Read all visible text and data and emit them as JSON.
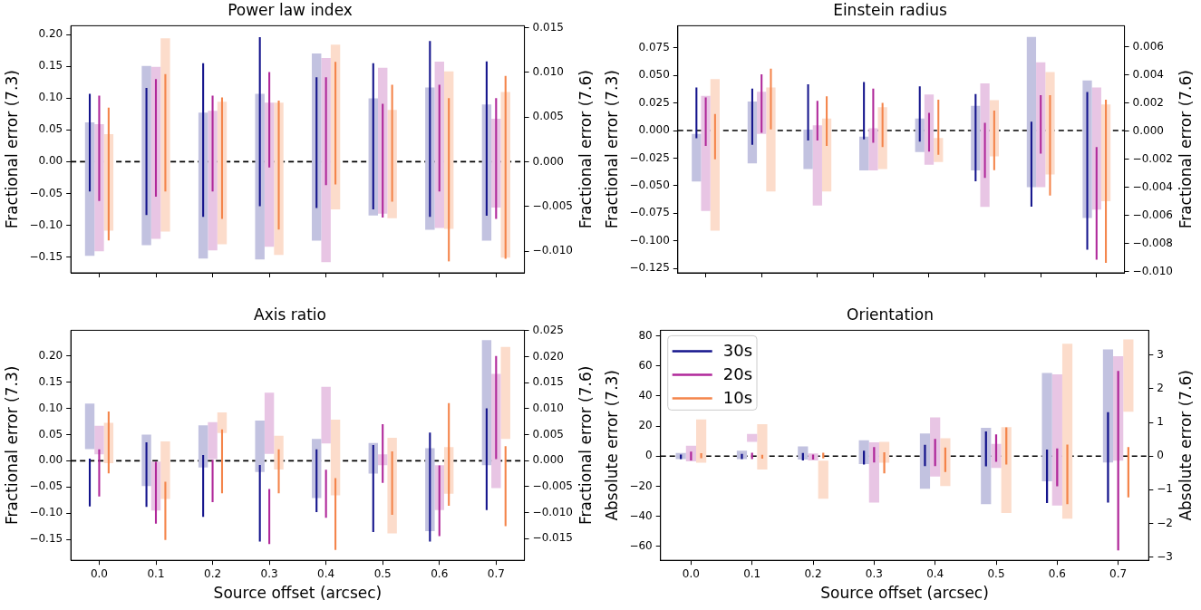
{
  "chart_data": [
    {
      "type": "bar",
      "title": "Power law index",
      "ylabel": "Fractional error (7.3)",
      "y2label": "Fractional error (7.6)",
      "categories": [
        "0.0",
        "0.1",
        "0.2",
        "0.3",
        "0.4",
        "0.5",
        "0.6",
        "0.7"
      ],
      "tick_labels": "y",
      "ylim": [
        -0.175,
        0.214
      ],
      "yticks": [
        {
          "value": -0.15,
          "label": "−0.15"
        },
        {
          "value": -0.1,
          "label": "−0.10"
        },
        {
          "value": -0.05,
          "label": "−0.05"
        },
        {
          "value": 0,
          "label": "0.00"
        },
        {
          "value": 0.05,
          "label": "0.05"
        },
        {
          "value": 0.1,
          "label": "0.10"
        },
        {
          "value": 0.15,
          "label": "0.15"
        },
        {
          "value": 0.2,
          "label": "0.20"
        }
      ],
      "y2lim": [
        -0.0124,
        0.0152
      ],
      "y2ticks": [
        {
          "value": -0.01,
          "label": "−0.010"
        },
        {
          "value": -0.005,
          "label": "−0.005"
        },
        {
          "value": 0,
          "label": "0.000"
        },
        {
          "value": 0.005,
          "label": "0.005"
        },
        {
          "value": 0.01,
          "label": "0.010"
        },
        {
          "value": 0.015,
          "label": "0.015"
        }
      ],
      "ref_lines": [
        {
          "axis": "y",
          "value": 0,
          "color": "#000000",
          "line_style": "dashed"
        }
      ],
      "series": [
        {
          "axis": "y2",
          "color": "#c2c2e0",
          "base": [
            -0.0105,
            -0.0093,
            -0.0108,
            -0.0109,
            -0.0088,
            -0.006,
            -0.0076,
            -0.0088
          ],
          "values": [
            0.0149,
            0.02,
            0.0163,
            0.0185,
            0.0209,
            0.0131,
            0.0159,
            0.0152
          ]
        },
        {
          "axis": "y2",
          "color": "#e8c5e4",
          "base": [
            -0.01,
            -0.0086,
            -0.0099,
            -0.0095,
            -0.0112,
            -0.0058,
            -0.0074,
            -0.0051
          ],
          "values": [
            0.0142,
            0.0192,
            0.0156,
            0.0161,
            0.0228,
            0.0163,
            0.0186,
            0.0099
          ]
        },
        {
          "axis": "y2",
          "color": "#fcdccb",
          "base": [
            -0.0077,
            -0.0078,
            -0.0092,
            -0.0104,
            -0.0053,
            -0.0063,
            -0.0075,
            -0.0107
          ],
          "values": [
            0.0108,
            0.0216,
            0.0159,
            0.017,
            0.0184,
            0.0121,
            0.0176,
            0.0185
          ]
        },
        {
          "axis": "y",
          "color": "#14148c",
          "base": [
            -0.047,
            -0.084,
            -0.087,
            -0.07,
            -0.073,
            -0.075,
            -0.087,
            -0.085
          ],
          "values": [
            0.154,
            0.2,
            0.242,
            0.266,
            0.206,
            0.23,
            0.277,
            0.243
          ]
        },
        {
          "axis": "y",
          "color": "#b0289a",
          "base": [
            -0.062,
            -0.055,
            -0.047,
            -0.009,
            -0.037,
            -0.088,
            -0.047,
            -0.09
          ],
          "values": [
            0.166,
            0.185,
            0.151,
            0.15,
            0.17,
            0.179,
            0.168,
            0.19
          ]
        },
        {
          "axis": "y",
          "color": "#f4844a",
          "base": [
            -0.124,
            -0.047,
            -0.09,
            -0.107,
            -0.036,
            -0.063,
            -0.157,
            -0.153
          ],
          "values": [
            0.209,
            0.185,
            0.191,
            0.203,
            0.193,
            0.184,
            0.257,
            0.288
          ]
        }
      ]
    },
    {
      "type": "bar",
      "title": "Einstein radius",
      "ylabel": "Fractional error (7.3)",
      "y2label": "Fractional error (7.6)",
      "categories": [
        "0.0",
        "0.1",
        "0.2",
        "0.3",
        "0.4",
        "0.5",
        "0.6",
        "0.7"
      ],
      "tick_labels": "y",
      "ylim": [
        -0.129,
        0.095
      ],
      "yticks": [
        {
          "value": -0.125,
          "label": "−0.125"
        },
        {
          "value": -0.1,
          "label": "−0.100"
        },
        {
          "value": -0.075,
          "label": "−0.075"
        },
        {
          "value": -0.05,
          "label": "−0.050"
        },
        {
          "value": -0.025,
          "label": "−0.025"
        },
        {
          "value": 0,
          "label": "0.000"
        },
        {
          "value": 0.025,
          "label": "0.025"
        },
        {
          "value": 0.05,
          "label": "0.050"
        },
        {
          "value": 0.075,
          "label": "0.075"
        }
      ],
      "y2lim": [
        -0.0101,
        0.0075
      ],
      "y2ticks": [
        {
          "value": -0.01,
          "label": "−0.010"
        },
        {
          "value": -0.008,
          "label": "−0.008"
        },
        {
          "value": -0.006,
          "label": "−0.006"
        },
        {
          "value": -0.004,
          "label": "−0.004"
        },
        {
          "value": -0.002,
          "label": "−0.002"
        },
        {
          "value": 0,
          "label": "0.000"
        },
        {
          "value": 0.002,
          "label": "0.002"
        },
        {
          "value": 0.004,
          "label": "0.004"
        },
        {
          "value": 0.006,
          "label": "0.006"
        }
      ],
      "ref_lines": [
        {
          "axis": "y",
          "value": 0,
          "color": "#000000",
          "line_style": "dashed"
        }
      ],
      "series": [
        {
          "axis": "y2",
          "color": "#c2c2e0",
          "base": [
            -0.0036,
            -0.0023,
            -0.0027,
            -0.0028,
            -0.0015,
            -0.0028,
            -0.004,
            -0.0062
          ],
          "values": [
            0.0034,
            0.0044,
            0.0028,
            0.0024,
            0.0024,
            0.0046,
            0.0107,
            0.0098
          ]
        },
        {
          "axis": "y2",
          "color": "#e8c5e4",
          "base": [
            -0.0057,
            -0.0002,
            -0.0053,
            -0.0028,
            -0.0024,
            -0.0054,
            -0.004,
            -0.0056
          ],
          "values": [
            0.0082,
            0.003,
            0.0057,
            0.003,
            0.005,
            0.0088,
            0.0089,
            0.0087
          ]
        },
        {
          "axis": "y2",
          "color": "#fcdccb",
          "base": [
            -0.0071,
            -0.0043,
            -0.0043,
            -0.0027,
            -0.0022,
            -0.0018,
            -0.0031,
            -0.005
          ],
          "values": [
            0.0108,
            0.0074,
            0.0052,
            0.0044,
            0.0017,
            0.004,
            0.0073,
            0.0069
          ]
        },
        {
          "axis": "y",
          "color": "#14148c",
          "base": [
            -0.007,
            -0.013,
            -0.009,
            -0.008,
            -0.01,
            -0.046,
            -0.069,
            -0.108
          ],
          "values": [
            0.046,
            0.051,
            0.051,
            0.052,
            0.05,
            0.079,
            0.077,
            0.143
          ]
        },
        {
          "axis": "y",
          "color": "#b0289a",
          "base": [
            -0.014,
            -0.002,
            -0.009,
            -0.011,
            -0.019,
            -0.043,
            -0.021,
            -0.117
          ],
          "values": [
            0.044,
            0.053,
            0.036,
            0.049,
            0.035,
            0.05,
            0.053,
            0.102
          ]
        },
        {
          "axis": "y",
          "color": "#f4844a",
          "base": [
            -0.026,
            0.001,
            -0.014,
            -0.015,
            -0.022,
            -0.036,
            -0.059,
            -0.12
          ],
          "values": [
            0.041,
            0.055,
            0.045,
            0.04,
            0.05,
            0.054,
            0.091,
            0.148
          ]
        }
      ]
    },
    {
      "type": "bar",
      "title": "Axis ratio",
      "xlabel": "Source offset (arcsec)",
      "ylabel": "Fractional error (7.3)",
      "y2label": "Fractional error (7.6)",
      "categories": [
        "0.0",
        "0.1",
        "0.2",
        "0.3",
        "0.4",
        "0.5",
        "0.6",
        "0.7"
      ],
      "ylim": [
        -0.19,
        0.249
      ],
      "yticks": [
        {
          "value": -0.15,
          "label": "−0.15"
        },
        {
          "value": -0.1,
          "label": "−0.10"
        },
        {
          "value": -0.05,
          "label": "−0.05"
        },
        {
          "value": 0,
          "label": "0.00"
        },
        {
          "value": 0.05,
          "label": "0.05"
        },
        {
          "value": 0.1,
          "label": "0.10"
        },
        {
          "value": 0.15,
          "label": "0.15"
        },
        {
          "value": 0.2,
          "label": "0.20"
        }
      ],
      "y2lim": [
        -0.0192,
        0.0251
      ],
      "y2ticks": [
        {
          "value": -0.015,
          "label": "−0.015"
        },
        {
          "value": -0.01,
          "label": "−0.010"
        },
        {
          "value": -0.005,
          "label": "−0.005"
        },
        {
          "value": 0,
          "label": "0.000"
        },
        {
          "value": 0.005,
          "label": "0.005"
        },
        {
          "value": 0.01,
          "label": "0.010"
        },
        {
          "value": 0.015,
          "label": "0.015"
        },
        {
          "value": 0.02,
          "label": "0.020"
        },
        {
          "value": 0.025,
          "label": "0.025"
        }
      ],
      "ref_lines": [
        {
          "axis": "y",
          "value": 0,
          "color": "#000000",
          "line_style": "dashed"
        }
      ],
      "series": [
        {
          "axis": "y2",
          "color": "#c2c2e0",
          "base": [
            0.0022,
            -0.0049,
            -0.0013,
            -0.0022,
            -0.0072,
            -0.0025,
            -0.0136,
            -0.0009
          ],
          "values": [
            0.0088,
            0.0099,
            0.0081,
            0.0099,
            0.0114,
            0.0059,
            0.016,
            0.0241
          ]
        },
        {
          "axis": "y2",
          "color": "#e8c5e4",
          "base": [
            0.0012,
            -0.0096,
            0.0003,
            0.0013,
            0.0033,
            -0.0009,
            -0.0095,
            -0.0053
          ],
          "values": [
            0.0055,
            0.0094,
            0.0071,
            0.0118,
            0.0109,
            0.0021,
            0.0086,
            0.022
          ]
        },
        {
          "axis": "y2",
          "color": "#fcdccb",
          "base": [
            -0.0005,
            -0.0074,
            0.0053,
            -0.0017,
            -0.0067,
            -0.014,
            -0.0064,
            0.0042
          ],
          "values": [
            0.0078,
            0.0111,
            0.004,
            0.0065,
            0.0146,
            0.0184,
            0.009,
            0.0177
          ]
        },
        {
          "axis": "y",
          "color": "#14148c",
          "base": [
            -0.087,
            -0.088,
            -0.107,
            -0.154,
            -0.098,
            -0.136,
            -0.154,
            -0.094
          ],
          "values": [
            0.091,
            0.123,
            0.118,
            0.146,
            0.12,
            0.166,
            0.208,
            0.194
          ]
        },
        {
          "axis": "y",
          "color": "#b0289a",
          "base": [
            -0.068,
            -0.12,
            -0.079,
            -0.159,
            -0.109,
            -0.042,
            -0.144,
            0.003
          ],
          "values": [
            0.09,
            0.118,
            0.081,
            0.105,
            0.092,
            0.112,
            0.135,
            0.197
          ]
        },
        {
          "axis": "y",
          "color": "#f4844a",
          "base": [
            -0.024,
            -0.151,
            -0.062,
            -0.062,
            -0.17,
            -0.103,
            -0.086,
            -0.125
          ],
          "values": [
            0.118,
            0.111,
            0.122,
            0.084,
            0.137,
            0.121,
            0.196,
            0.153
          ]
        }
      ]
    },
    {
      "type": "bar",
      "title": "Orientation",
      "xlabel": "Source offset (arcsec)",
      "ylabel": "Absolute error (7.3)",
      "y2label": "Absolute error (7.6)",
      "categories": [
        "0.0",
        "0.1",
        "0.2",
        "0.3",
        "0.4",
        "0.5",
        "0.6",
        "0.7"
      ],
      "legend": "top left",
      "ylim": [
        -69.2,
        83.6
      ],
      "yticks": [
        {
          "value": -60,
          "label": "−60"
        },
        {
          "value": -40,
          "label": "−40"
        },
        {
          "value": -20,
          "label": "−20"
        },
        0,
        20,
        40,
        60,
        80
      ],
      "y2lim": [
        -3.1,
        3.74
      ],
      "y2ticks": [
        {
          "value": -3,
          "label": "−3"
        },
        {
          "value": -2,
          "label": "−2"
        },
        {
          "value": -1,
          "label": "−1"
        },
        0,
        1,
        2,
        3
      ],
      "ref_lines": [
        {
          "axis": "y",
          "value": 0,
          "color": "#000000",
          "line_style": "dashed"
        }
      ],
      "series": [
        {
          "axis": "y2",
          "color": "#c2c2e0",
          "base": [
            -0.09,
            -0.09,
            -0.1,
            -0.24,
            -0.97,
            -1.43,
            -0.75,
            -0.19
          ],
          "values": [
            0.18,
            0.25,
            0.39,
            0.71,
            1.64,
            2.27,
            3.22,
            3.36
          ]
        },
        {
          "axis": "y2",
          "color": "#e8c5e4",
          "base": [
            -0.16,
            0.42,
            -0.13,
            -1.38,
            -0.61,
            -0.35,
            -1.47,
            -0.14
          ],
          "values": [
            0.47,
            0.24,
            0.21,
            1.79,
            1.76,
            0.71,
            3.9,
            3.11
          ]
        },
        {
          "axis": "y2",
          "color": "#fcdccb",
          "base": [
            -0.2,
            -0.4,
            -1.27,
            -0.2,
            -0.89,
            -1.69,
            -1.86,
            1.32
          ],
          "values": [
            1.29,
            1.35,
            1.13,
            0.62,
            1.42,
            2.55,
            5.2,
            2.15
          ]
        },
        {
          "name": "30s",
          "axis": "y",
          "color": "#14148c",
          "base": [
            -1.9,
            -1.9,
            -2.8,
            -5.5,
            -6.6,
            -6.8,
            -31.1,
            -30.9
          ],
          "values": [
            3.0,
            3.4,
            4.9,
            9.1,
            14.1,
            23.2,
            35.4,
            60.1
          ]
        },
        {
          "name": "20s",
          "axis": "y",
          "color": "#b0289a",
          "base": [
            -2.8,
            -1.9,
            -2.3,
            -4.2,
            -6.6,
            -3.8,
            -20.0,
            -62.6
          ],
          "values": [
            5.8,
            4.2,
            3.4,
            10.2,
            18.1,
            18.3,
            25.1,
            119.2
          ]
        },
        {
          "name": "10s",
          "axis": "y",
          "color": "#f4844a",
          "base": [
            -1.3,
            -1.7,
            -1.5,
            -11.5,
            -10.6,
            -5.5,
            -31.9,
            -27.4
          ],
          "values": [
            3.2,
            2.6,
            3.8,
            14.0,
            16.4,
            24.6,
            39.6,
            33.4
          ]
        }
      ]
    }
  ]
}
